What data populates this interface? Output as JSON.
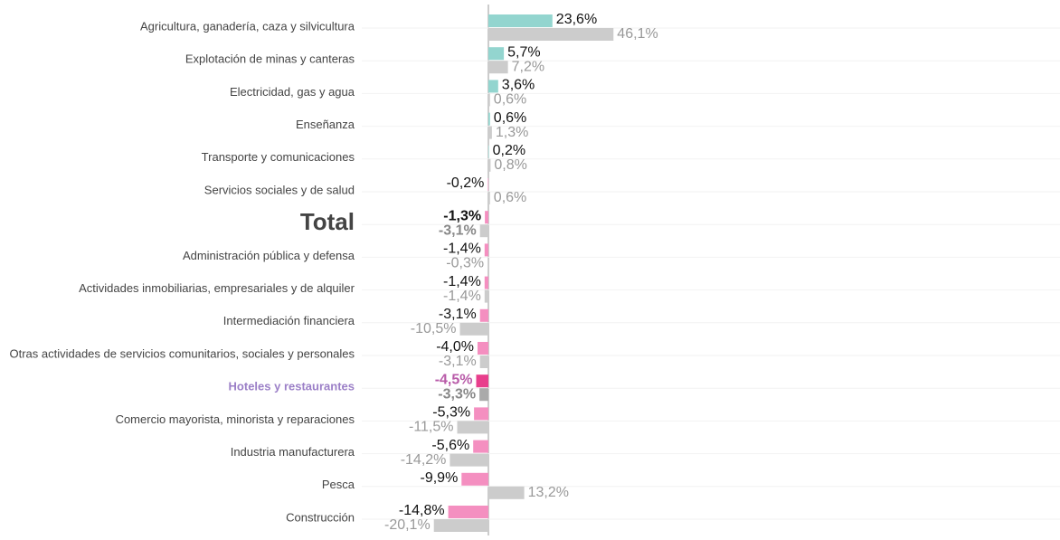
{
  "chart_data": {
    "type": "bar",
    "orientation": "horizontal",
    "categories": [
      "Agricultura, ganadería, caza y silvicultura",
      "Explotación de minas y canteras",
      "Electricidad, gas y agua",
      "Enseñanza",
      "Transporte y comunicaciones",
      "Servicios sociales y de salud",
      "Total",
      "Administración pública y defensa",
      "Actividades inmobiliarias, empresariales y de alquiler",
      "Intermediación financiera",
      "Otras actividades de servicios comunitarios, sociales y personales",
      "Hoteles y restaurantes",
      "Comercio mayorista, minorista y reparaciones",
      "Industria manufacturera",
      "Pesca",
      "Construcción"
    ],
    "series": [
      {
        "values": [
          23.6,
          5.7,
          3.6,
          0.6,
          0.2,
          -0.2,
          -1.3,
          -1.4,
          -1.4,
          -3.1,
          -4.0,
          -4.5,
          -5.3,
          -5.6,
          -9.9,
          -14.8
        ],
        "value_labels": [
          "23,6%",
          "5,7%",
          "3,6%",
          "0,6%",
          "0,2%",
          "-0,2%",
          "-1,3%",
          "-1,4%",
          "-1,4%",
          "-3,1%",
          "-4,0%",
          "-4,5%",
          "-5,3%",
          "-5,6%",
          "-9,9%",
          "-14,8%"
        ],
        "colors": [
          "#93d5cf",
          "#93d5cf",
          "#93d5cf",
          "#93d5cf",
          "#93d5cf",
          "#f48fc0",
          "#f48fc0",
          "#f48fc0",
          "#f48fc0",
          "#f48fc0",
          "#f48fc0",
          "#e83e8c",
          "#f48fc0",
          "#f48fc0",
          "#f48fc0",
          "#f48fc0"
        ]
      },
      {
        "values": [
          46.1,
          7.2,
          0.6,
          1.3,
          0.8,
          0.6,
          -3.1,
          -0.3,
          -1.4,
          -10.5,
          -3.1,
          -3.3,
          -11.5,
          -14.2,
          13.2,
          -20.1
        ],
        "value_labels": [
          "46,1%",
          "7,2%",
          "0,6%",
          "1,3%",
          "0,8%",
          "0,6%",
          "-3,1%",
          "-0,3%",
          "-1,4%",
          "-10,5%",
          "-3,1%",
          "-3,3%",
          "-11,5%",
          "-14,2%",
          "13,2%",
          "-20,1%"
        ],
        "colors": [
          "#cccccc",
          "#cccccc",
          "#cccccc",
          "#cccccc",
          "#cccccc",
          "#cccccc",
          "#cccccc",
          "#cccccc",
          "#cccccc",
          "#cccccc",
          "#cccccc",
          "#aaaaaa",
          "#cccccc",
          "#cccccc",
          "#cccccc",
          "#cccccc"
        ]
      }
    ]
  }
}
